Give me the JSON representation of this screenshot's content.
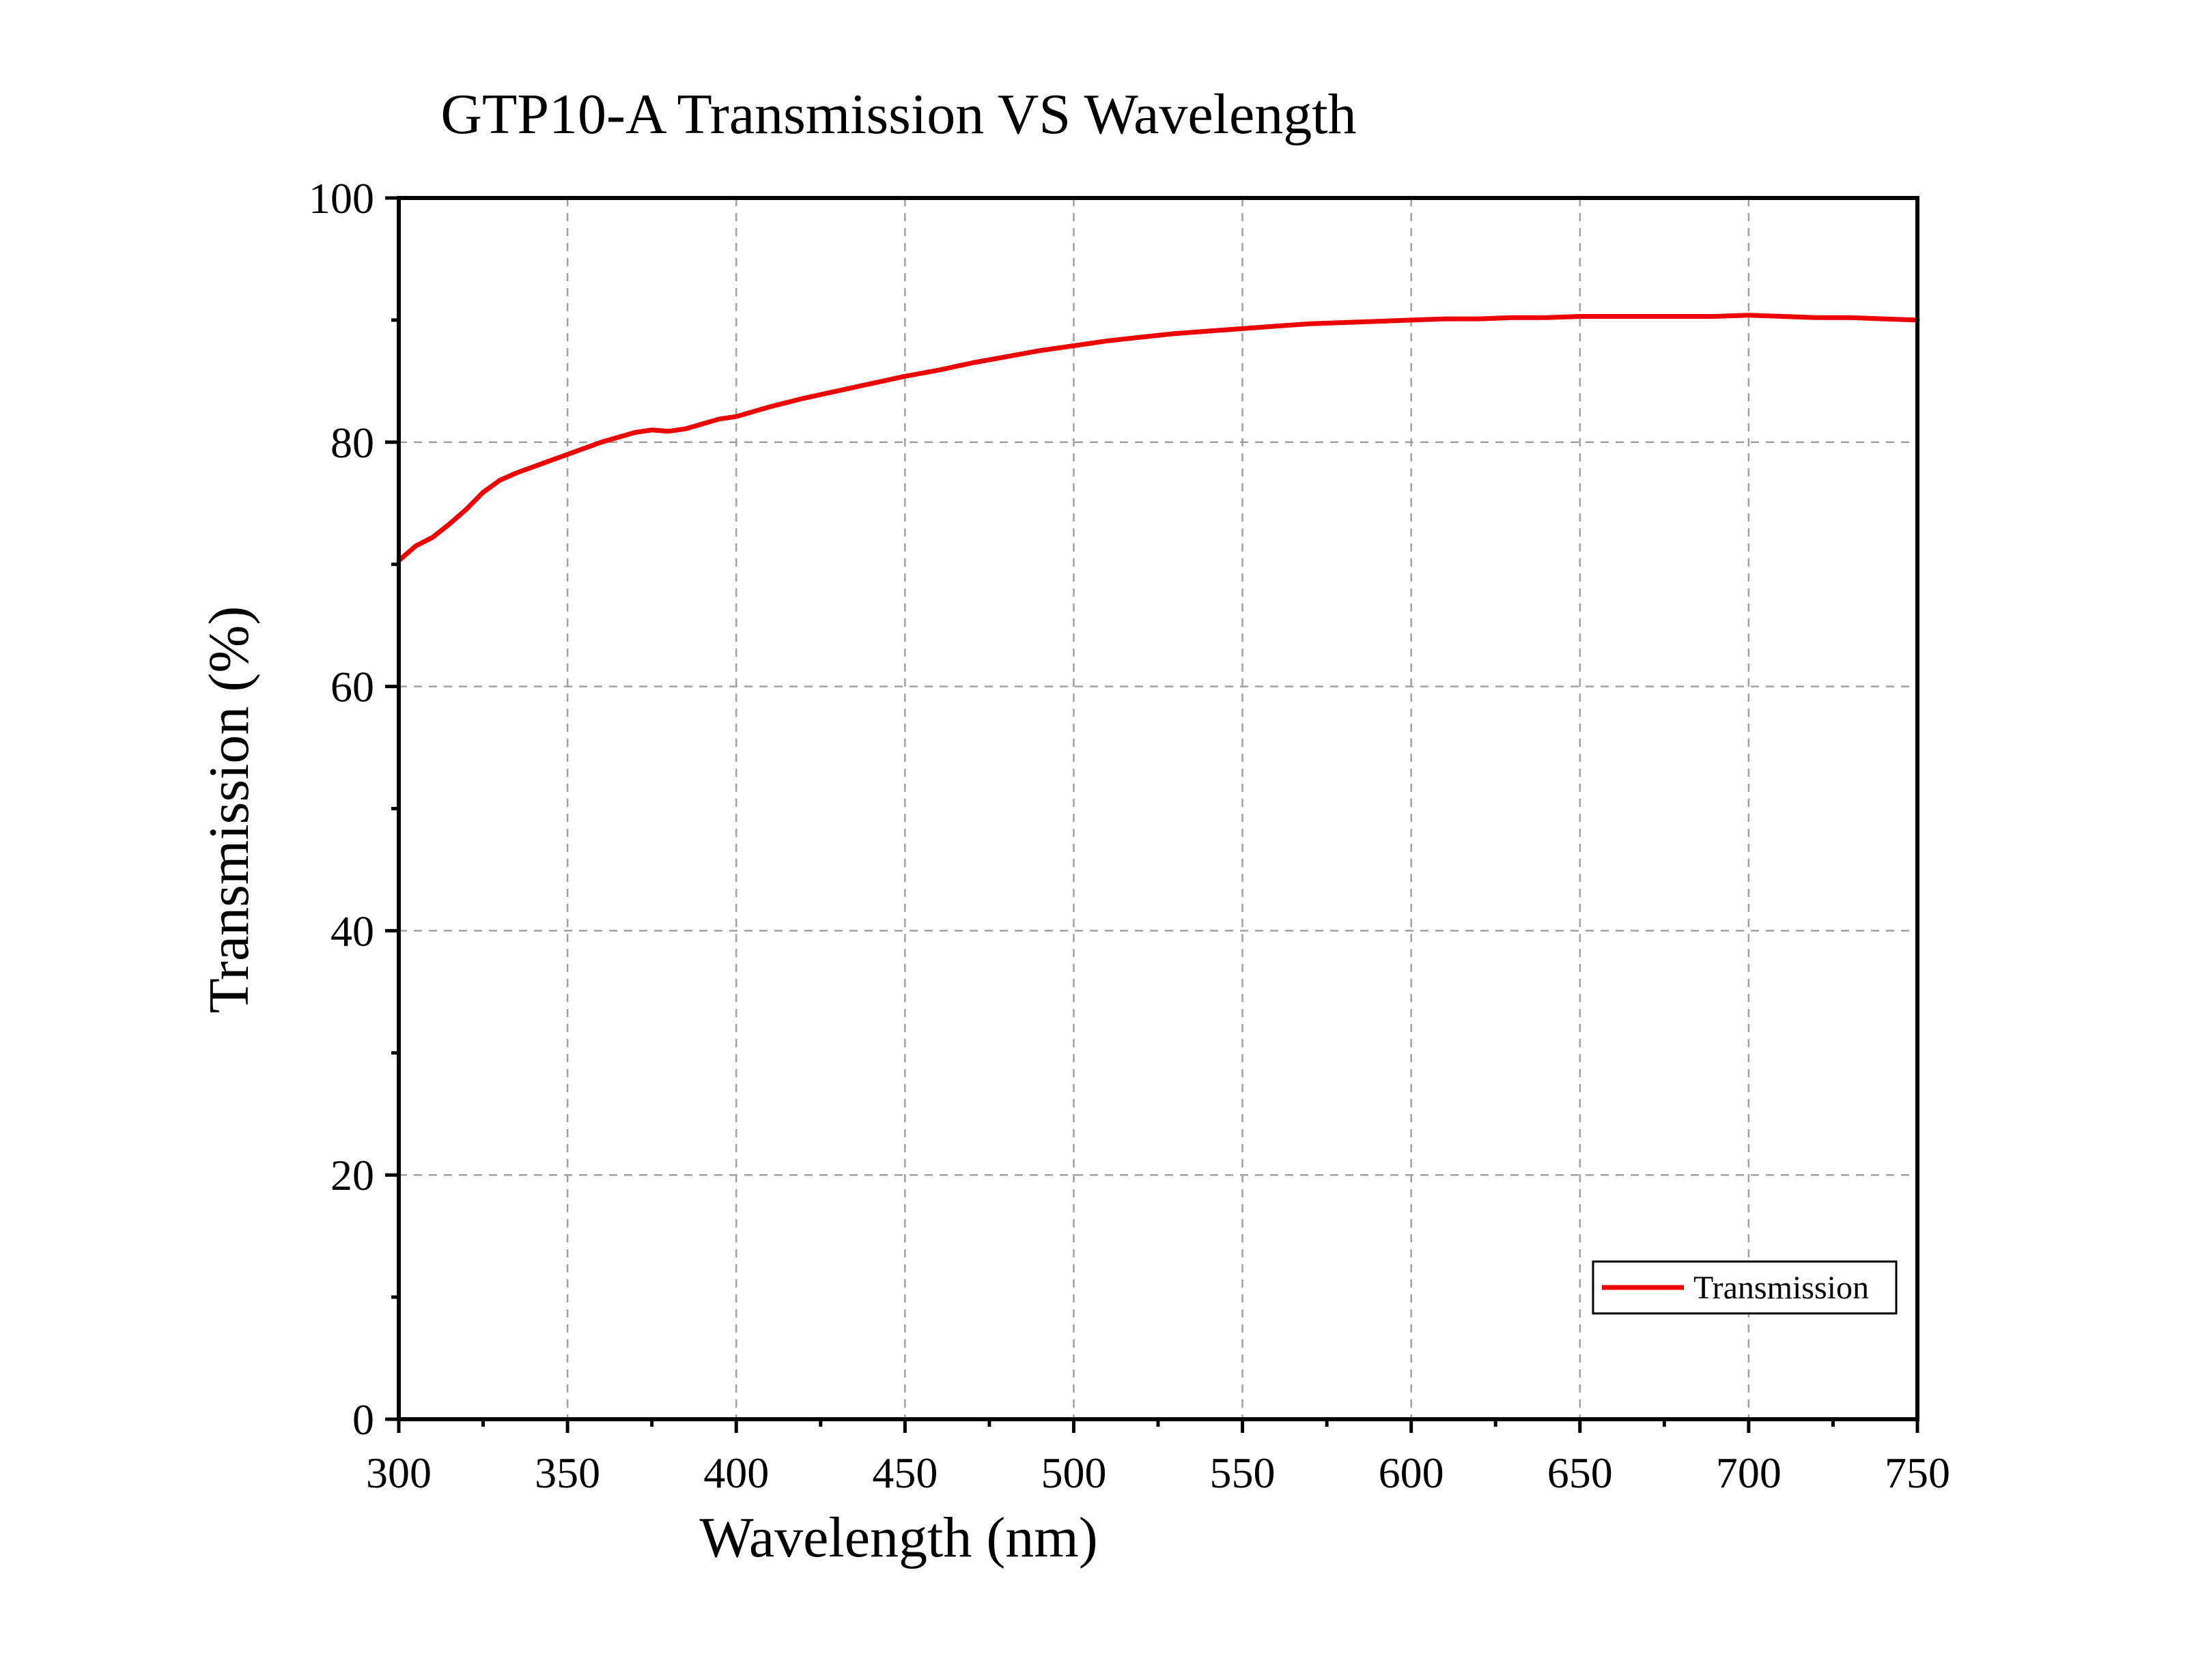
{
  "chart_data": {
    "type": "line",
    "title": "GTP10-A Transmission VS Wavelength",
    "xlabel": "Wavelength (nm)",
    "ylabel": "Transmission (%)",
    "xlim": [
      300,
      750
    ],
    "ylim": [
      0,
      100
    ],
    "x_ticks": [
      "300",
      "350",
      "400",
      "450",
      "500",
      "550",
      "600",
      "650",
      "700",
      "750"
    ],
    "y_ticks": [
      "0",
      "20",
      "40",
      "60",
      "80",
      "100"
    ],
    "grid": true,
    "legend_position": "bottom-right",
    "series": [
      {
        "name": "Transmission",
        "color": "#ee0000",
        "x": [
          300,
          305,
          310,
          315,
          320,
          325,
          330,
          335,
          340,
          345,
          350,
          355,
          360,
          365,
          370,
          375,
          380,
          385,
          390,
          395,
          400,
          410,
          420,
          430,
          440,
          450,
          460,
          470,
          480,
          490,
          500,
          510,
          520,
          530,
          540,
          550,
          560,
          570,
          580,
          590,
          600,
          610,
          620,
          630,
          640,
          650,
          660,
          670,
          680,
          690,
          700,
          710,
          720,
          730,
          740,
          750
        ],
        "y": [
          70.3,
          71.5,
          72.2,
          73.3,
          74.5,
          75.9,
          76.9,
          77.5,
          78.0,
          78.5,
          79.0,
          79.5,
          80.0,
          80.4,
          80.8,
          81.0,
          80.9,
          81.1,
          81.5,
          81.9,
          82.1,
          82.9,
          83.6,
          84.2,
          84.8,
          85.4,
          85.9,
          86.5,
          87.0,
          87.5,
          87.9,
          88.3,
          88.6,
          88.9,
          89.1,
          89.3,
          89.5,
          89.7,
          89.8,
          89.9,
          90.0,
          90.1,
          90.1,
          90.2,
          90.2,
          90.3,
          90.3,
          90.3,
          90.3,
          90.3,
          90.4,
          90.3,
          90.2,
          90.2,
          90.1,
          90.0
        ]
      }
    ]
  }
}
